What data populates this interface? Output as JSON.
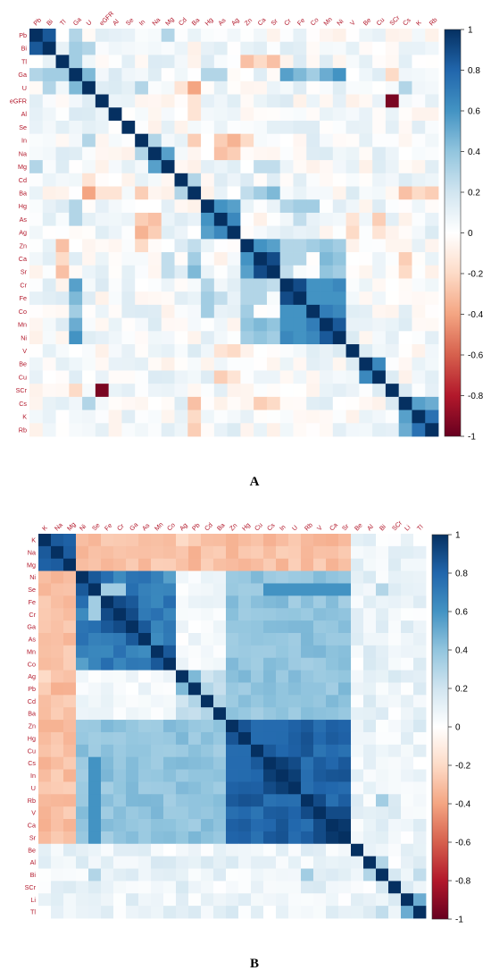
{
  "chart_data": [
    {
      "type": "heatmap",
      "panel_label": "A",
      "title": "",
      "xlabel": "",
      "ylabel": "",
      "variables": [
        "Pb",
        "Bi",
        "Tl",
        "Ga",
        "U",
        "eGFR",
        "Al",
        "Se",
        "In",
        "Na",
        "Mg",
        "Cd",
        "Ba",
        "Hg",
        "As",
        "Ag",
        "Zn",
        "Ca",
        "Sr",
        "Cr",
        "Fe",
        "Co",
        "Mn",
        "Ni",
        "V",
        "Be",
        "Cu",
        "SCr",
        "Cs",
        "K",
        "Rb"
      ],
      "value_range": [
        -1,
        1
      ],
      "colorbar_ticks": [
        1,
        0.8,
        0.6,
        0.4,
        0.2,
        0,
        -0.2,
        -0.4,
        -0.6,
        -0.8,
        -1
      ],
      "colorscale": [
        "#67001f",
        "#b2182b",
        "#d6604d",
        "#f4a582",
        "#fddbc7",
        "#ffffff",
        "#d1e5f0",
        "#92c5de",
        "#4393c3",
        "#2166ac",
        "#053061"
      ],
      "grid": false,
      "legend": "right",
      "defaults": {
        "min": -0.08,
        "max": 0.16
      },
      "correlations": [
        [
          "Pb",
          "Bi",
          0.85
        ],
        [
          "Pb",
          "Ga",
          0.3
        ],
        [
          "Pb",
          "Mg",
          0.3
        ],
        [
          "Bi",
          "Ga",
          0.35
        ],
        [
          "Bi",
          "U",
          0.3
        ],
        [
          "Tl",
          "Ga",
          0.35
        ],
        [
          "Tl",
          "Zn",
          -0.3
        ],
        [
          "Tl",
          "Sr",
          -0.3
        ],
        [
          "Tl",
          "Ca",
          -0.2
        ],
        [
          "Ga",
          "U",
          0.45
        ],
        [
          "Ga",
          "Cr",
          0.55
        ],
        [
          "Ga",
          "Fe",
          0.45
        ],
        [
          "Ga",
          "Mn",
          0.5
        ],
        [
          "Ga",
          "Ni",
          0.6
        ],
        [
          "Ga",
          "Co",
          0.35
        ],
        [
          "Ga",
          "Hg",
          0.3
        ],
        [
          "Ga",
          "As",
          0.3
        ],
        [
          "Ga",
          "SCr",
          -0.2
        ],
        [
          "U",
          "Ba",
          -0.4
        ],
        [
          "U",
          "In",
          0.3
        ],
        [
          "U",
          "Cd",
          -0.15
        ],
        [
          "U",
          "Cs",
          0.3
        ],
        [
          "eGFR",
          "SCr",
          -0.95
        ],
        [
          "eGFR",
          "Ba",
          -0.15
        ],
        [
          "Al",
          "Ba",
          -0.15
        ],
        [
          "In",
          "Na",
          0.3
        ],
        [
          "In",
          "Ag",
          -0.35
        ],
        [
          "In",
          "As",
          -0.25
        ],
        [
          "In",
          "Ba",
          -0.25
        ],
        [
          "In",
          "Zn",
          -0.2
        ],
        [
          "Na",
          "Mg",
          0.55
        ],
        [
          "Na",
          "As",
          -0.3
        ],
        [
          "Na",
          "Ag",
          -0.25
        ],
        [
          "Mg",
          "Ca",
          0.25
        ],
        [
          "Mg",
          "Sr",
          0.25
        ],
        [
          "Cd",
          "Ba",
          0.3
        ],
        [
          "Ba",
          "Sr",
          0.45
        ],
        [
          "Ba",
          "Ca",
          0.35
        ],
        [
          "Ba",
          "Cs",
          -0.3
        ],
        [
          "Ba",
          "Rb",
          -0.25
        ],
        [
          "Ba",
          "K",
          -0.2
        ],
        [
          "Ba",
          "Zn",
          0.25
        ],
        [
          "Hg",
          "As",
          0.6
        ],
        [
          "Hg",
          "Ag",
          0.55
        ],
        [
          "Hg",
          "Cr",
          0.3
        ],
        [
          "Hg",
          "Fe",
          0.35
        ],
        [
          "Hg",
          "Co",
          0.35
        ],
        [
          "As",
          "Ag",
          0.65
        ],
        [
          "As",
          "Fe",
          0.25
        ],
        [
          "As",
          "Cu",
          -0.25
        ],
        [
          "As",
          "V",
          -0.15
        ],
        [
          "Ag",
          "V",
          -0.2
        ],
        [
          "Ag",
          "Cu",
          -0.15
        ],
        [
          "Zn",
          "Ca",
          0.6
        ],
        [
          "Zn",
          "Sr",
          0.55
        ],
        [
          "Zn",
          "Mn",
          0.4
        ],
        [
          "Zn",
          "Ni",
          0.35
        ],
        [
          "Zn",
          "Cr",
          0.3
        ],
        [
          "Zn",
          "Fe",
          0.3
        ],
        [
          "Zn",
          "Co",
          0.35
        ],
        [
          "Ca",
          "Sr",
          0.9
        ],
        [
          "Ca",
          "Mn",
          0.45
        ],
        [
          "Ca",
          "Ni",
          0.4
        ],
        [
          "Ca",
          "Cs",
          -0.25
        ],
        [
          "Ca",
          "Cr",
          0.3
        ],
        [
          "Ca",
          "Fe",
          0.3
        ],
        [
          "Sr",
          "Mn",
          0.4
        ],
        [
          "Sr",
          "Ni",
          0.35
        ],
        [
          "Sr",
          "Cr",
          0.25
        ],
        [
          "Sr",
          "Cs",
          -0.2
        ],
        [
          "Cr",
          "Fe",
          0.9
        ],
        [
          "Cr",
          "Co",
          0.6
        ],
        [
          "Cr",
          "Mn",
          0.6
        ],
        [
          "Cr",
          "Ni",
          0.65
        ],
        [
          "Fe",
          "Co",
          0.6
        ],
        [
          "Fe",
          "Mn",
          0.6
        ],
        [
          "Fe",
          "Ni",
          0.6
        ],
        [
          "Co",
          "Mn",
          0.7
        ],
        [
          "Co",
          "Ni",
          0.65
        ],
        [
          "Mn",
          "Ni",
          0.85
        ],
        [
          "V",
          "Be",
          0.15
        ],
        [
          "Be",
          "Cu",
          0.65
        ],
        [
          "Cu",
          "SCr",
          0.15
        ],
        [
          "Cs",
          "K",
          0.55
        ],
        [
          "Cs",
          "Rb",
          0.5
        ],
        [
          "K",
          "Rb",
          0.75
        ]
      ]
    },
    {
      "type": "heatmap",
      "panel_label": "B",
      "title": "",
      "xlabel": "",
      "ylabel": "",
      "variables": [
        "K",
        "Na",
        "Mg",
        "Ni",
        "Se",
        "Fe",
        "Cr",
        "Ga",
        "As",
        "Mn",
        "Co",
        "Ag",
        "Pb",
        "Cd",
        "Ba",
        "Zn",
        "Hg",
        "Cu",
        "Cs",
        "In",
        "U",
        "Rb",
        "V",
        "Ca",
        "Sr",
        "Be",
        "Al",
        "Bi",
        "SCr",
        "Li",
        "Tl"
      ],
      "value_range": [
        -1,
        1
      ],
      "colorbar_ticks": [
        1,
        0.8,
        0.6,
        0.4,
        0.2,
        0,
        -0.2,
        -0.4,
        -0.6,
        -0.8,
        -1
      ],
      "colorscale": [
        "#67001f",
        "#b2182b",
        "#d6604d",
        "#f4a582",
        "#fddbc7",
        "#ffffff",
        "#d1e5f0",
        "#92c5de",
        "#4393c3",
        "#2166ac",
        "#053061"
      ],
      "grid": false,
      "legend": "right",
      "defaults": {
        "min": 0.0,
        "max": 0.18
      },
      "group_blocks": [
        {
          "members": [
            "K",
            "Na",
            "Mg"
          ],
          "within": 0.8
        },
        {
          "members": [
            "Ni",
            "Se",
            "Fe",
            "Cr",
            "Ga",
            "As",
            "Mn",
            "Co"
          ],
          "within": 0.7
        },
        {
          "members": [
            "Zn",
            "Hg",
            "Cu",
            "Cs",
            "In",
            "U",
            "Rb",
            "V",
            "Ca",
            "Sr"
          ],
          "within": 0.8
        },
        {
          "members": [
            "Ag",
            "Pb",
            "Cd",
            "Ba"
          ],
          "within": 0.25
        }
      ],
      "group_cross": [
        {
          "a": [
            "K",
            "Na",
            "Mg"
          ],
          "b": [
            "Ni",
            "Se",
            "Fe",
            "Cr",
            "Ga",
            "As",
            "Mn",
            "Co",
            "Ag",
            "Pb",
            "Cd",
            "Ba",
            "Zn",
            "Hg",
            "Cu",
            "Cs",
            "In",
            "U",
            "Rb",
            "V",
            "Ca",
            "Sr"
          ],
          "value": -0.3
        },
        {
          "a": [
            "Ni",
            "Se",
            "Fe",
            "Cr",
            "Ga",
            "As",
            "Mn",
            "Co"
          ],
          "b": [
            "Zn",
            "Hg",
            "Cu",
            "Cs",
            "In",
            "U",
            "Rb",
            "V",
            "Ca",
            "Sr"
          ],
          "value": 0.4
        },
        {
          "a": [
            "Ag",
            "Pb",
            "Cd",
            "Ba"
          ],
          "b": [
            "Zn",
            "Hg",
            "Cu",
            "Cs",
            "In",
            "U",
            "Rb",
            "V",
            "Ca",
            "Sr"
          ],
          "value": 0.4
        },
        {
          "a": [
            "Ag",
            "Pb",
            "Cd",
            "Ba"
          ],
          "b": [
            "Ni",
            "Se",
            "Fe",
            "Cr",
            "Ga",
            "As",
            "Mn",
            "Co"
          ],
          "value": 0.05
        }
      ],
      "correlations": [
        [
          "Fe",
          "Cr",
          0.9
        ],
        [
          "Cr",
          "Ga",
          0.9
        ],
        [
          "Ga",
          "As",
          0.85
        ],
        [
          "Fe",
          "Ga",
          0.85
        ],
        [
          "Mn",
          "Co",
          0.85
        ],
        [
          "Ni",
          "Se",
          0.85
        ],
        [
          "Ni",
          "Co",
          0.55
        ],
        [
          "Se",
          "Fe",
          0.35
        ],
        [
          "Se",
          "Cr",
          0.35
        ],
        [
          "Cs",
          "In",
          0.95
        ],
        [
          "In",
          "U",
          0.95
        ],
        [
          "Cs",
          "U",
          0.9
        ],
        [
          "Ca",
          "Sr",
          0.97
        ],
        [
          "V",
          "Ca",
          0.9
        ],
        [
          "V",
          "Sr",
          0.9
        ],
        [
          "Rb",
          "V",
          0.9
        ],
        [
          "Pb",
          "Ag",
          0.45
        ],
        [
          "Cd",
          "Ba",
          0.3
        ],
        [
          "Se",
          "Cs",
          0.6
        ],
        [
          "Se",
          "In",
          0.6
        ],
        [
          "Se",
          "U",
          0.6
        ],
        [
          "Se",
          "Rb",
          0.6
        ],
        [
          "Se",
          "V",
          0.6
        ],
        [
          "Se",
          "Ca",
          0.6
        ],
        [
          "Se",
          "Sr",
          0.6
        ],
        [
          "K",
          "Ag",
          -0.2
        ],
        [
          "K",
          "Pb",
          -0.25
        ],
        [
          "K",
          "Zn",
          -0.35
        ],
        [
          "Na",
          "Zn",
          -0.35
        ],
        [
          "Bi",
          "Rb",
          0.35
        ],
        [
          "Bi",
          "Se",
          0.3
        ],
        [
          "Al",
          "Bi",
          0.3
        ],
        [
          "Li",
          "Tl",
          0.5
        ],
        [
          "Bi",
          "Tl",
          0.25
        ]
      ]
    }
  ]
}
